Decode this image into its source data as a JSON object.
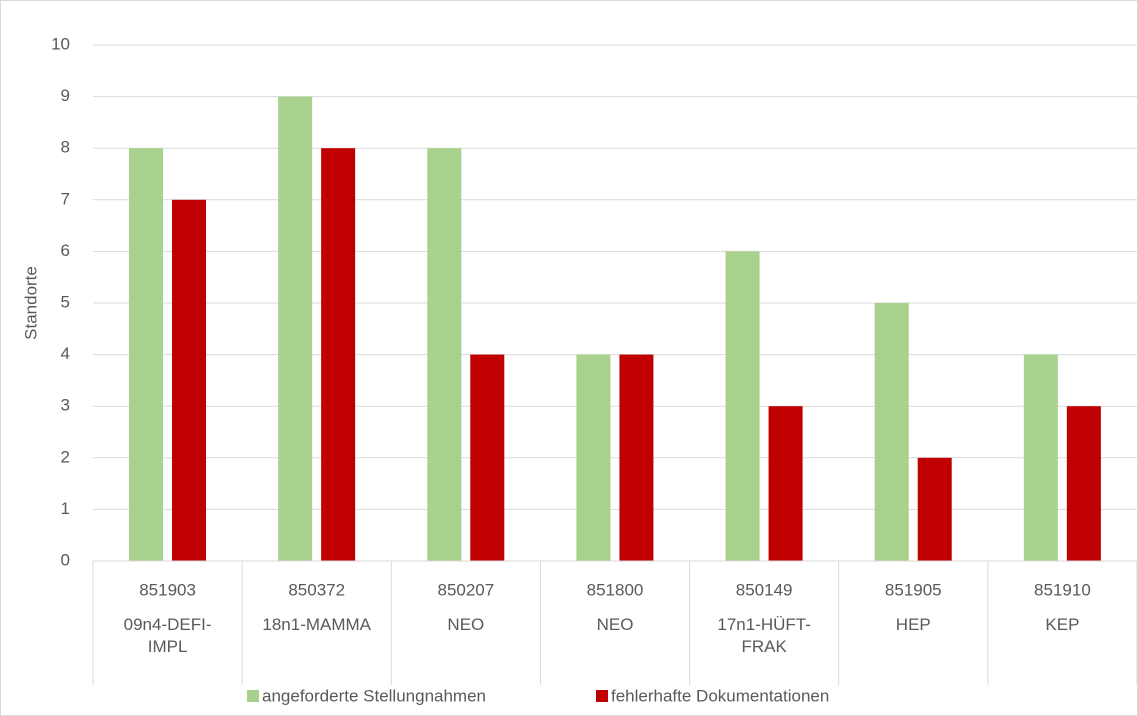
{
  "chart_data": {
    "type": "bar",
    "y_label": "Standorte",
    "categories": [
      "851903",
      "850372",
      "850207",
      "851800",
      "850149",
      "851905",
      "851910"
    ],
    "category_labels": [
      "09n4-DEFI-IMPL",
      "18n1-MAMMA",
      "NEO",
      "NEO",
      "17n1-HÜFT-FRAK",
      "HEP",
      "KEP"
    ],
    "series": [
      {
        "name": "angeforderte Stellungnahmen",
        "color": "#a9d18e",
        "values": [
          8,
          9,
          8,
          4,
          6,
          5,
          4
        ]
      },
      {
        "name": "fehlerhafte Dokumentationen",
        "color": "#c00000",
        "values": [
          7,
          8,
          4,
          4,
          3,
          2,
          3
        ]
      }
    ],
    "ylim": [
      0,
      10
    ],
    "yticks": [
      0,
      1,
      2,
      3,
      4,
      5,
      6,
      7,
      8,
      9,
      10
    ],
    "grid": true,
    "legend": "bottom"
  }
}
